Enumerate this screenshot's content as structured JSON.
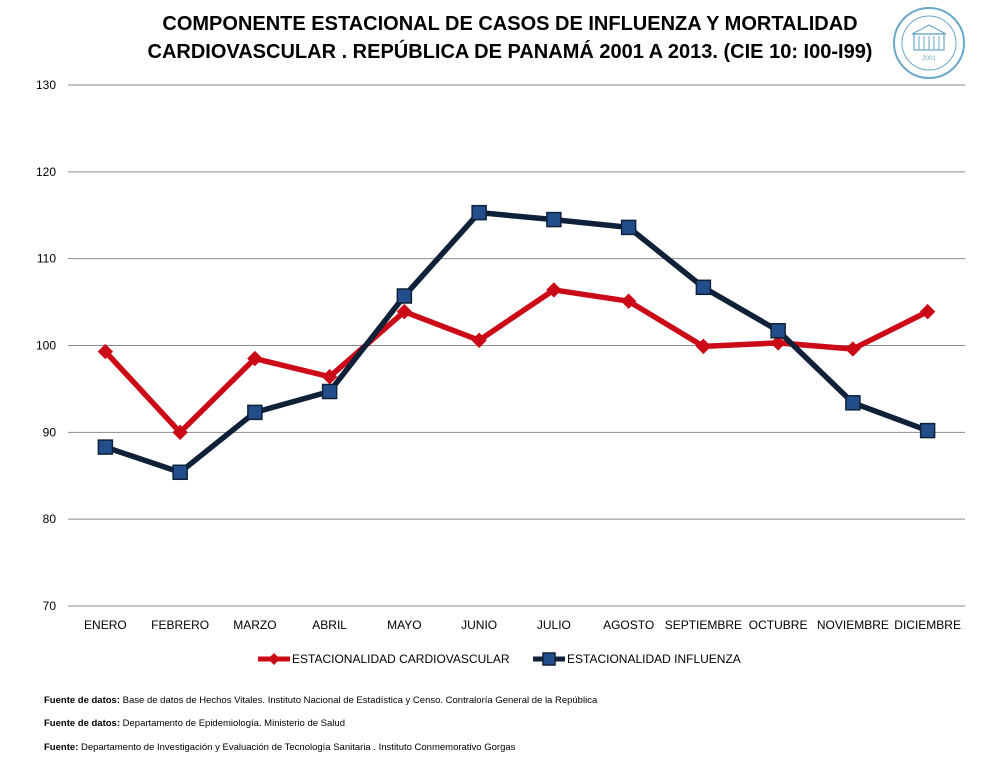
{
  "title": {
    "line1": "COMPONENTE ESTACIONAL DE CASOS DE INFLUENZA Y MORTALIDAD",
    "line2": "CARDIOVASCULAR . REPÚBLICA DE PANAMÁ 2001 A 2013. (CIE 10: I00-I99)"
  },
  "logo": {
    "icon": "institution-seal-icon",
    "color": "#6aa8c8",
    "year_text": "2001"
  },
  "chart_data": {
    "type": "line",
    "title": "COMPONENTE ESTACIONAL DE CASOS DE INFLUENZA Y MORTALIDAD CARDIOVASCULAR . REPÚBLICA DE PANAMÁ 2001 A 2013. (CIE 10: I00-I99)",
    "xlabel": "",
    "ylabel": "",
    "categories": [
      "ENERO",
      "FEBRERO",
      "MARZO",
      "ABRIL",
      "MAYO",
      "JUNIO",
      "JULIO",
      "AGOSTO",
      "SEPTIEMBRE",
      "OCTUBRE",
      "NOVIEMBRE",
      "DICIEMBRE"
    ],
    "ylim": [
      70,
      130
    ],
    "yticks": [
      "70",
      "80",
      "90",
      "100",
      "110",
      "120",
      "130"
    ],
    "grid": true,
    "legend_position": "bottom",
    "series": [
      {
        "name": "ESTACIONALIDAD CARDIOVASCULAR",
        "color": "#cc0a17",
        "marker": "diamond",
        "values": [
          99.3,
          90.0,
          98.5,
          96.4,
          103.9,
          100.6,
          106.4,
          105.1,
          99.9,
          100.3,
          99.6,
          103.9
        ]
      },
      {
        "name": "ESTACIONALIDAD INFLUENZA",
        "color": "#0f2138",
        "marker_color": "#234e8c",
        "marker": "square",
        "values": [
          88.3,
          85.4,
          92.3,
          94.7,
          105.7,
          115.3,
          114.5,
          113.6,
          106.7,
          101.7,
          93.4,
          90.2
        ]
      }
    ]
  },
  "sources": [
    {
      "label": "Fuente de datos:",
      "text": "Base de datos de Hechos Vitales. Instituto Nacional de Estadística y Censo. Contraloría General de la República"
    },
    {
      "label": "Fuente de datos:",
      "text": "Departamento de Epidemiología. Ministerio de Salud"
    },
    {
      "label": "Fuente:",
      "text": "Departamento de Investigación y Evaluación de Tecnología Sanitaria . Instituto Conmemorativo Gorgas"
    }
  ]
}
